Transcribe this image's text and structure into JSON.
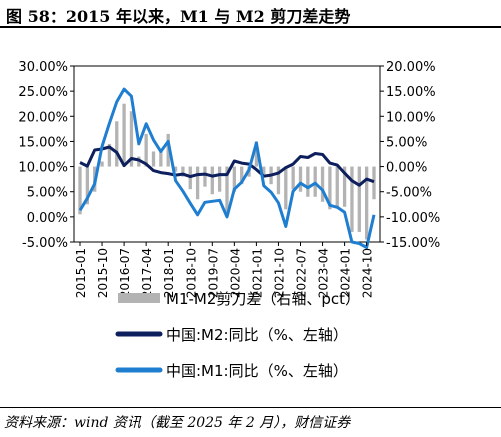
{
  "figure": {
    "title": "图 58：2015 年以来，M1 与 M2 剪刀差走势",
    "source": "资料来源：wind 资讯（截至 2025 年 2 月），财信证券"
  },
  "chart_data": {
    "type": "line",
    "title": "",
    "x": [
      "2015-01",
      "2015-04",
      "2015-07",
      "2015-10",
      "2016-01",
      "2016-04",
      "2016-07",
      "2016-10",
      "2017-01",
      "2017-04",
      "2017-07",
      "2017-10",
      "2018-01",
      "2018-04",
      "2018-07",
      "2018-10",
      "2019-01",
      "2019-04",
      "2019-07",
      "2019-10",
      "2020-01",
      "2020-04",
      "2020-07",
      "2020-10",
      "2021-01",
      "2021-04",
      "2021-07",
      "2021-10",
      "2022-01",
      "2022-04",
      "2022-07",
      "2022-10",
      "2023-01",
      "2023-04",
      "2023-07",
      "2023-10",
      "2024-01",
      "2024-04",
      "2024-07",
      "2024-10",
      "2025-01"
    ],
    "x_tick_labels": [
      "2015-01",
      "2015-10",
      "2016-07",
      "2017-04",
      "2018-01",
      "2018-10",
      "2019-07",
      "2020-04",
      "2021-01",
      "2021-10",
      "2022-07",
      "2023-04",
      "2024-01",
      "2024-10"
    ],
    "y_left": {
      "label": "",
      "ylim": [
        -5,
        30
      ],
      "ticks": [
        "-5.00%",
        "0.00%",
        "5.00%",
        "10.00%",
        "15.00%",
        "20.00%",
        "25.00%",
        "30.00%"
      ]
    },
    "y_right": {
      "label": "",
      "ylim": [
        -15,
        20
      ],
      "ticks": [
        "-15.00%",
        "-10.00%",
        "-5.00%",
        "0.00%",
        "5.00%",
        "10.00%",
        "15.00%",
        "20.00%"
      ]
    },
    "series": [
      {
        "name": "M1-M2剪刀差（右轴、pct）",
        "type": "bar",
        "axis": "right",
        "color": "#b3b3b3",
        "values": [
          -9.5,
          -7.5,
          -5.0,
          1.0,
          4.5,
          9.0,
          12.5,
          11.0,
          2.0,
          6.5,
          3.0,
          3.5,
          6.5,
          -1.0,
          -2.0,
          -4.5,
          -6.5,
          -4.0,
          -5.5,
          -5.0,
          -9.0,
          -5.0,
          -3.5,
          -2.0,
          5.0,
          -1.5,
          -3.5,
          -5.5,
          -8.5,
          -4.5,
          -5.0,
          -6.0,
          -6.0,
          -7.0,
          -8.5,
          -8.0,
          -8.0,
          -13.0,
          -13.0,
          -14.5,
          -6.5
        ]
      },
      {
        "name": "中国:M2:同比（%、左轴）",
        "type": "line",
        "axis": "left",
        "color": "#0d1f5c",
        "values": [
          10.8,
          10.1,
          13.3,
          13.5,
          13.9,
          12.8,
          10.2,
          11.6,
          11.3,
          10.5,
          9.2,
          8.8,
          8.6,
          8.3,
          8.5,
          8.0,
          8.4,
          8.5,
          8.1,
          8.4,
          8.4,
          11.1,
          10.7,
          10.5,
          9.4,
          8.1,
          8.3,
          8.7,
          9.8,
          10.5,
          12.0,
          11.8,
          12.6,
          12.4,
          10.7,
          10.3,
          8.7,
          7.2,
          6.3,
          7.5,
          7.0
        ]
      },
      {
        "name": "中国:M1:同比（%、左轴）",
        "type": "line",
        "axis": "left",
        "color": "#1f7ed0",
        "values": [
          1.3,
          3.7,
          6.6,
          14.0,
          18.6,
          22.9,
          25.4,
          24.0,
          14.5,
          18.5,
          15.3,
          13.0,
          15.0,
          7.2,
          5.1,
          2.7,
          0.4,
          2.9,
          3.1,
          3.3,
          0.0,
          5.5,
          6.9,
          9.4,
          14.7,
          6.2,
          4.9,
          2.8,
          -1.9,
          5.1,
          6.7,
          5.8,
          6.7,
          5.3,
          2.3,
          1.9,
          0.9,
          -5.0,
          -5.3,
          -6.1,
          0.4
        ]
      }
    ],
    "legend": {
      "placement": "bottom"
    }
  }
}
